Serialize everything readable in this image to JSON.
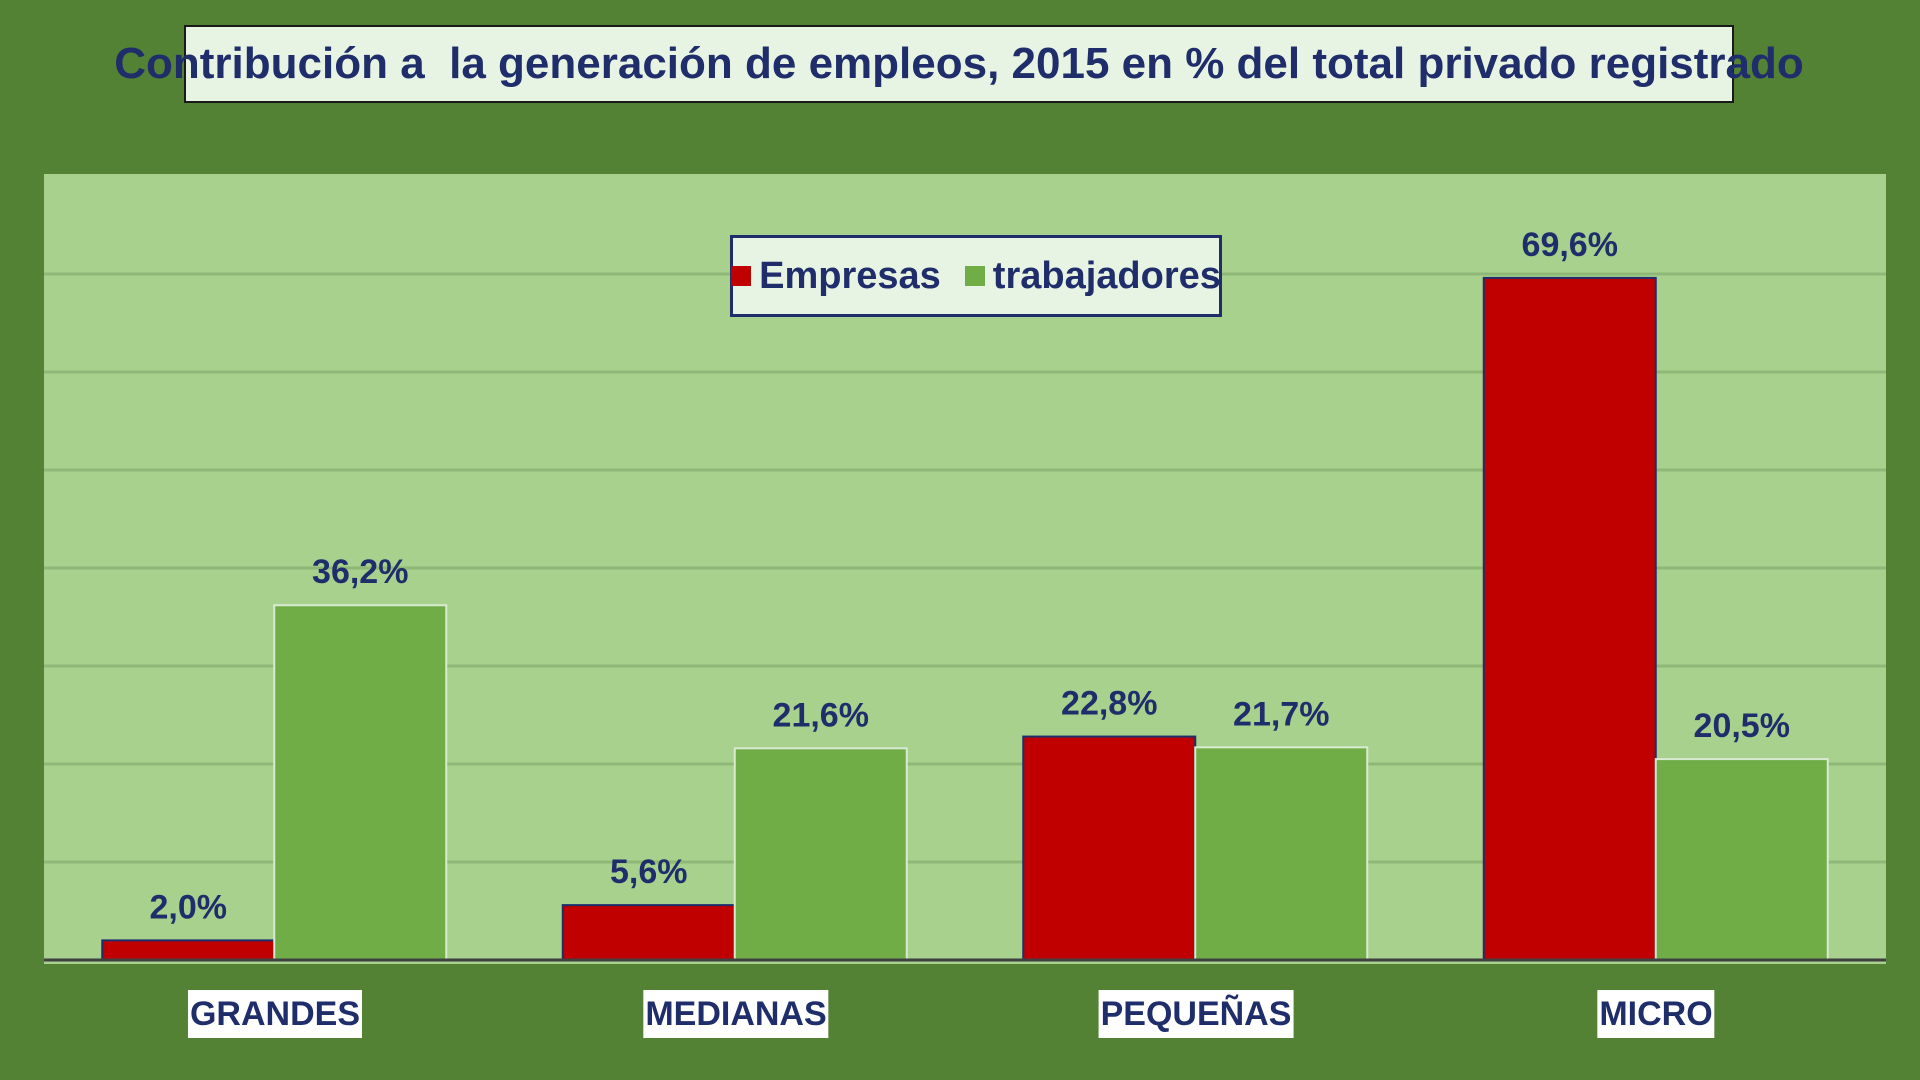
{
  "title": "Contribución a  la generación de empleos, 2015 en % del total privado registrado",
  "colors": {
    "frame": "#548235",
    "plot_bg": "#a9d18e",
    "empresas": "#c00000",
    "trabajadores": "#70ad47",
    "text": "#1f2e6b"
  },
  "chart_data": {
    "type": "bar",
    "title": "Contribución a  la generación de empleos, 2015 en % del total privado registrado",
    "categories": [
      "GRANDES",
      "MEDIANAS",
      "PEQUEÑAS",
      "MICRO"
    ],
    "series": [
      {
        "name": "Empresas",
        "values": [
          2.0,
          5.6,
          22.8,
          69.6
        ],
        "labels": [
          "2,0%",
          "5,6%",
          "22,8%",
          "69,6%"
        ]
      },
      {
        "name": "trabajadores",
        "values": [
          36.2,
          21.6,
          21.7,
          20.5
        ],
        "labels": [
          "36,2%",
          "21,6%",
          "21,7%",
          "20,5%"
        ]
      }
    ],
    "ylim": [
      0,
      80
    ],
    "grid": true,
    "legend_position": "top-center"
  }
}
